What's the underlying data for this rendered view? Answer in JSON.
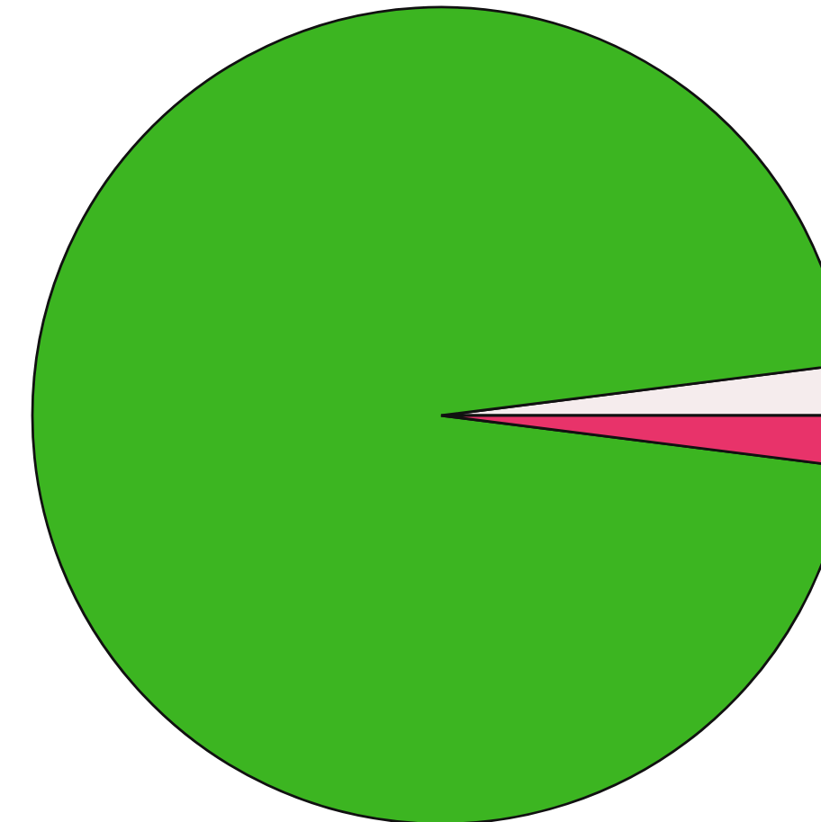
{
  "chart_data": {
    "type": "pie",
    "categories": [
      null,
      null,
      null
    ],
    "values": [
      2,
      96,
      2
    ],
    "colors": [
      "#f5eced",
      "#3cb521",
      "#e8336a"
    ]
  }
}
